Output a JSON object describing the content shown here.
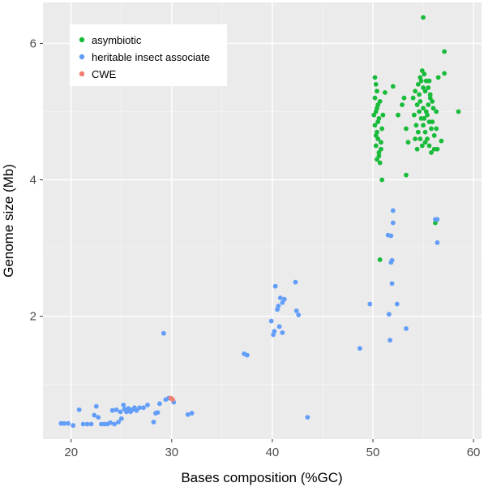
{
  "chart_data": {
    "type": "scatter",
    "xlabel": "Bases composition (%GC)",
    "ylabel": "Genome size (Mb)",
    "xlim": [
      17.2,
      60.8
    ],
    "ylim": [
      0.2,
      6.6
    ],
    "x_ticks": [
      20,
      30,
      40,
      50,
      60
    ],
    "y_ticks": [
      2,
      4,
      6
    ],
    "grid": true,
    "legend_position": "top-left",
    "panel_background": "#ebebeb",
    "grid_color": "#ffffff",
    "series": [
      {
        "name": "asymbiotic",
        "color": "#19bb3a",
        "points": [
          [
            55.0,
            6.38
          ],
          [
            57.1,
            5.88
          ],
          [
            57.1,
            5.56
          ],
          [
            58.5,
            5.0
          ],
          [
            56.5,
            5.5
          ],
          [
            56.3,
            5.0
          ],
          [
            56.8,
            4.57
          ],
          [
            56.4,
            4.45
          ],
          [
            56.1,
            4.45
          ],
          [
            53.3,
            4.07
          ],
          [
            50.9,
            4.0
          ],
          [
            50.7,
            2.83
          ],
          [
            56.2,
            3.37
          ],
          [
            53.1,
            5.2
          ],
          [
            53.3,
            4.75
          ],
          [
            52.0,
            5.37
          ],
          [
            51.2,
            5.28
          ],
          [
            52.5,
            4.95
          ],
          [
            53.5,
            4.55
          ],
          [
            52.9,
            5.1
          ],
          [
            50.2,
            5.5
          ],
          [
            50.3,
            5.4
          ],
          [
            50.4,
            5.3
          ],
          [
            50.2,
            5.2
          ],
          [
            50.5,
            5.1
          ],
          [
            50.3,
            5.0
          ],
          [
            50.6,
            4.9
          ],
          [
            50.2,
            4.8
          ],
          [
            50.4,
            4.7
          ],
          [
            50.5,
            4.6
          ],
          [
            50.3,
            4.5
          ],
          [
            50.6,
            4.4
          ],
          [
            50.4,
            4.3
          ],
          [
            50.7,
            4.25
          ],
          [
            50.8,
            4.55
          ],
          [
            50.9,
            4.75
          ],
          [
            51.0,
            4.95
          ],
          [
            50.7,
            5.15
          ],
          [
            50.3,
            4.65
          ],
          [
            50.5,
            4.85
          ],
          [
            50.8,
            4.45
          ],
          [
            50.4,
            5.05
          ],
          [
            50.1,
            4.95
          ],
          [
            50.6,
            4.35
          ],
          [
            54.2,
            5.3
          ],
          [
            54.5,
            5.4
          ],
          [
            54.7,
            5.5
          ],
          [
            54.9,
            5.6
          ],
          [
            55.1,
            5.55
          ],
          [
            55.3,
            5.45
          ],
          [
            55.5,
            5.35
          ],
          [
            55.7,
            5.25
          ],
          [
            55.9,
            5.15
          ],
          [
            56.0,
            5.05
          ],
          [
            54.4,
            5.1
          ],
          [
            54.6,
            5.0
          ],
          [
            54.8,
            4.9
          ],
          [
            55.0,
            4.8
          ],
          [
            55.2,
            4.7
          ],
          [
            55.4,
            4.6
          ],
          [
            55.6,
            4.5
          ],
          [
            55.8,
            4.4
          ],
          [
            54.3,
            4.8
          ],
          [
            54.5,
            4.7
          ],
          [
            54.7,
            4.6
          ],
          [
            54.9,
            4.5
          ],
          [
            55.1,
            4.9
          ],
          [
            55.3,
            5.0
          ],
          [
            55.5,
            5.1
          ],
          [
            55.7,
            5.2
          ],
          [
            55.9,
            4.85
          ],
          [
            54.1,
            4.95
          ],
          [
            54.0,
            5.2
          ],
          [
            54.6,
            5.25
          ],
          [
            55.2,
            5.3
          ],
          [
            55.8,
            4.75
          ],
          [
            56.1,
            4.65
          ],
          [
            54.2,
            4.6
          ],
          [
            55.0,
            5.05
          ],
          [
            54.8,
            5.45
          ],
          [
            55.4,
            4.95
          ],
          [
            55.6,
            4.85
          ],
          [
            54.4,
            4.45
          ],
          [
            55.2,
            4.55
          ],
          [
            56.3,
            4.75
          ],
          [
            54.7,
            5.15
          ],
          [
            55.0,
            5.35
          ],
          [
            55.6,
            5.45
          ]
        ]
      },
      {
        "name": "heritable insect associate",
        "color": "#629ef8",
        "points": [
          [
            19.0,
            0.43
          ],
          [
            19.3,
            0.43
          ],
          [
            19.7,
            0.43
          ],
          [
            20.2,
            0.4
          ],
          [
            20.8,
            0.63
          ],
          [
            21.2,
            0.42
          ],
          [
            21.6,
            0.42
          ],
          [
            22.0,
            0.42
          ],
          [
            22.3,
            0.55
          ],
          [
            22.5,
            0.68
          ],
          [
            22.7,
            0.52
          ],
          [
            23.0,
            0.42
          ],
          [
            23.3,
            0.42
          ],
          [
            23.6,
            0.42
          ],
          [
            23.9,
            0.44
          ],
          [
            24.1,
            0.62
          ],
          [
            24.3,
            0.42
          ],
          [
            24.5,
            0.63
          ],
          [
            24.7,
            0.45
          ],
          [
            24.9,
            0.6
          ],
          [
            25.0,
            0.5
          ],
          [
            25.2,
            0.7
          ],
          [
            25.3,
            0.64
          ],
          [
            25.5,
            0.6
          ],
          [
            25.7,
            0.65
          ],
          [
            25.9,
            0.6
          ],
          [
            26.1,
            0.63
          ],
          [
            26.3,
            0.66
          ],
          [
            26.5,
            0.62
          ],
          [
            26.8,
            0.66
          ],
          [
            27.2,
            0.66
          ],
          [
            27.6,
            0.7
          ],
          [
            28.2,
            0.45
          ],
          [
            28.4,
            0.58
          ],
          [
            28.6,
            0.59
          ],
          [
            28.8,
            0.72
          ],
          [
            29.2,
            1.75
          ],
          [
            29.4,
            0.78
          ],
          [
            29.7,
            0.8
          ],
          [
            30.2,
            0.74
          ],
          [
            31.6,
            0.56
          ],
          [
            32.0,
            0.58
          ],
          [
            37.2,
            1.45
          ],
          [
            37.5,
            1.43
          ],
          [
            39.9,
            1.93
          ],
          [
            40.1,
            1.73
          ],
          [
            40.3,
            2.44
          ],
          [
            40.5,
            2.1
          ],
          [
            40.6,
            2.15
          ],
          [
            40.8,
            2.27
          ],
          [
            41.0,
            1.76
          ],
          [
            41.2,
            2.25
          ],
          [
            40.2,
            1.78
          ],
          [
            40.7,
            1.85
          ],
          [
            41.0,
            2.2
          ],
          [
            42.3,
            2.5
          ],
          [
            42.4,
            2.08
          ],
          [
            42.6,
            2.02
          ],
          [
            43.5,
            0.52
          ],
          [
            48.7,
            1.53
          ],
          [
            49.7,
            2.18
          ],
          [
            51.6,
            2.03
          ],
          [
            51.7,
            1.65
          ],
          [
            51.8,
            2.79
          ],
          [
            51.9,
            2.48
          ],
          [
            51.5,
            3.19
          ],
          [
            51.8,
            3.18
          ],
          [
            52.0,
            3.55
          ],
          [
            52.0,
            3.37
          ],
          [
            51.9,
            2.82
          ],
          [
            52.4,
            2.18
          ],
          [
            53.3,
            1.82
          ],
          [
            56.2,
            3.42
          ],
          [
            56.4,
            3.08
          ],
          [
            56.4,
            3.42
          ]
        ]
      },
      {
        "name": "CWE",
        "color": "#f17e74",
        "points": [
          [
            29.9,
            0.8
          ],
          [
            30.1,
            0.78
          ]
        ]
      }
    ]
  }
}
